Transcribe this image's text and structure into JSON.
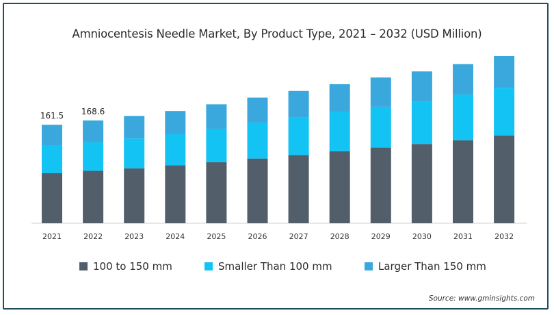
{
  "chart_data": {
    "type": "bar",
    "stacked": true,
    "title": "Amniocentesis Needle Market, By Product Type, 2021 – 2032 (USD Million)",
    "categories": [
      "2021",
      "2022",
      "2023",
      "2024",
      "2025",
      "2026",
      "2027",
      "2028",
      "2029",
      "2030",
      "2031",
      "2032"
    ],
    "series": [
      {
        "name": "100 to 150 mm",
        "color": "#525f6b",
        "values": [
          82,
          86,
          90,
          95,
          100,
          106,
          112,
          118,
          124,
          130,
          136,
          144
        ]
      },
      {
        "name": "Smaller Than 100 mm",
        "color": "#13c3f3",
        "values": [
          46,
          47,
          49,
          51,
          55,
          59,
          62,
          65,
          67,
          69,
          75,
          78
        ]
      },
      {
        "name": "Larger Than 150 mm",
        "color": "#3aa8dd",
        "values": [
          33.5,
          35.6,
          37,
          38,
          40,
          41,
          43,
          45,
          48,
          50,
          50,
          52
        ]
      }
    ],
    "data_labels": [
      "161.5",
      "168.6",
      "",
      "",
      "",
      "",
      "",
      "",
      "",
      "",
      "",
      ""
    ],
    "ylim": [
      0,
      274
    ],
    "grid": false,
    "legend_position": "bottom"
  },
  "source": "Source: www.gminsights.com"
}
